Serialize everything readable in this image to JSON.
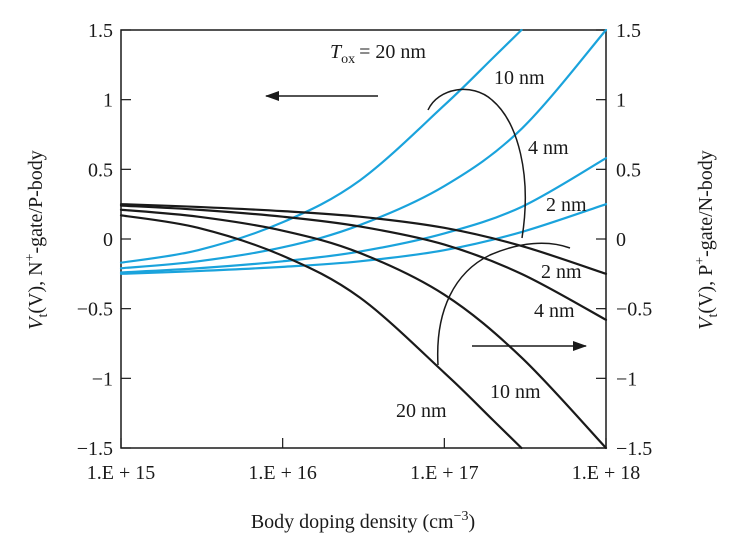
{
  "chart_data": {
    "type": "line",
    "xlabel": "Body doping density (cm",
    "xlabel_sup": "−3",
    "xlabel_end": ")",
    "ylabel_left": {
      "prefix": "V",
      "sub": "t",
      "mid": "(V), N",
      "sup": "+",
      "end": "-gate/P-body"
    },
    "ylabel_right": {
      "prefix": "V",
      "sub": "t",
      "mid": "(V), P",
      "sup": "+",
      "end": "-gate/N-body"
    },
    "x_scale": "log",
    "xlim": [
      1000000000000000.0,
      1e+18
    ],
    "ylim": [
      -1.5,
      1.5
    ],
    "x_ticks": [
      1000000000000000.0,
      1e+16,
      1e+17,
      1e+18
    ],
    "x_tick_labels": [
      "1.E + 15",
      "1.E + 16",
      "1.E + 17",
      "1.E + 18"
    ],
    "y_ticks": [
      -1.5,
      -1,
      -0.5,
      0,
      0.5,
      1,
      1.5
    ],
    "y_tick_labels_left": [
      "−1.5",
      "−1",
      "−0.5",
      "0",
      "0.5",
      "1",
      "1.5"
    ],
    "y_tick_labels_right": [
      "−1.5",
      "−1",
      "−0.5",
      "0",
      "0.5",
      "1",
      "1.5"
    ],
    "grid": false,
    "colors": {
      "nmos": "#1aa3dc",
      "pmos": "#1a1a1a"
    },
    "series": [
      {
        "group": "nmos",
        "tox": "20nm",
        "x": [
          1000000000000000.0,
          3000000000000000.0,
          1e+16,
          3e+16,
          1e+17,
          2e+17,
          3e+17
        ],
        "y": [
          -0.17,
          -0.08,
          0.12,
          0.42,
          0.96,
          1.3,
          1.5
        ]
      },
      {
        "group": "nmos",
        "tox": "10nm",
        "x": [
          1000000000000000.0,
          3000000000000000.0,
          1e+16,
          3e+16,
          1e+17,
          3e+17,
          1e+18
        ],
        "y": [
          -0.21,
          -0.16,
          -0.06,
          0.1,
          0.38,
          0.79,
          1.5
        ]
      },
      {
        "group": "nmos",
        "tox": "4nm",
        "x": [
          1000000000000000.0,
          3000000000000000.0,
          1e+16,
          3e+16,
          1e+17,
          3e+17,
          1e+18
        ],
        "y": [
          -0.24,
          -0.21,
          -0.16,
          -0.09,
          0.04,
          0.23,
          0.58
        ]
      },
      {
        "group": "nmos",
        "tox": "2nm",
        "x": [
          1000000000000000.0,
          3000000000000000.0,
          1e+16,
          3e+16,
          1e+17,
          3e+17,
          1e+18
        ],
        "y": [
          -0.25,
          -0.23,
          -0.2,
          -0.16,
          -0.08,
          0.05,
          0.25
        ]
      },
      {
        "group": "pmos",
        "tox": "2nm",
        "x": [
          1000000000000000.0,
          3000000000000000.0,
          1e+16,
          3e+16,
          1e+17,
          3e+17,
          1e+18
        ],
        "y": [
          0.25,
          0.23,
          0.2,
          0.16,
          0.08,
          -0.05,
          -0.25
        ]
      },
      {
        "group": "pmos",
        "tox": "4nm",
        "x": [
          1000000000000000.0,
          3000000000000000.0,
          1e+16,
          3e+16,
          1e+17,
          3e+17,
          1e+18
        ],
        "y": [
          0.24,
          0.21,
          0.16,
          0.09,
          -0.04,
          -0.25,
          -0.58
        ]
      },
      {
        "group": "pmos",
        "tox": "10nm",
        "x": [
          1000000000000000.0,
          3000000000000000.0,
          1e+16,
          3e+16,
          1e+17,
          3e+17,
          1e+18
        ],
        "y": [
          0.21,
          0.16,
          0.06,
          -0.1,
          -0.4,
          -0.85,
          -1.5
        ]
      },
      {
        "group": "pmos",
        "tox": "20nm",
        "x": [
          1000000000000000.0,
          3000000000000000.0,
          1e+16,
          3e+16,
          1e+17,
          2e+17,
          3e+17
        ],
        "y": [
          0.17,
          0.08,
          -0.12,
          -0.42,
          -0.96,
          -1.3,
          -1.5
        ]
      }
    ],
    "annotations": {
      "top_tox_prefix": "T",
      "top_tox_sub": "ox",
      "top_tox_value": "= 20 nm",
      "top_10nm": "10 nm",
      "top_4nm": "4 nm",
      "top_2nm": "2 nm",
      "bot_2nm": "2 nm",
      "bot_4nm": "4 nm",
      "bot_10nm": "10 nm",
      "bot_20nm": "20 nm"
    }
  }
}
